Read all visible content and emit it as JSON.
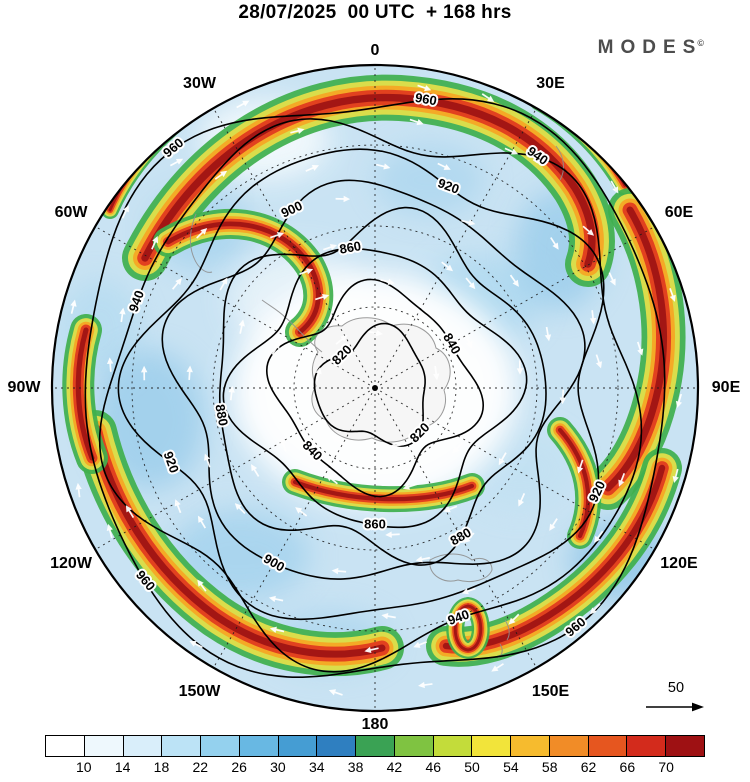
{
  "header": {
    "title": "28/07/2025  00 UTC  + 168 hrs",
    "logo": "MODES",
    "logo_mark": "©"
  },
  "chart_data": {
    "type": "heatmap",
    "title": "28/07/2025 00 UTC + 168 hrs",
    "description_visible": "polar circular weather chart with shaded speed field, height contours, white flow arrows",
    "colorbar": {
      "ticks": [
        "10",
        "14",
        "18",
        "22",
        "26",
        "30",
        "34",
        "38",
        "42",
        "46",
        "50",
        "54",
        "58",
        "62",
        "66",
        "70"
      ],
      "colors": [
        "#ffffff",
        "#eef8fd",
        "#d9eefa",
        "#bce3f6",
        "#94d1ee",
        "#68b8e3",
        "#459dd3",
        "#2f7fc0",
        "#3aa254",
        "#7fc341",
        "#c3dc3a",
        "#f2e43a",
        "#f6bb2e",
        "#f18c27",
        "#e6561f",
        "#d32b1c",
        "#9e1113"
      ]
    },
    "contour_levels": [
      "820",
      "840",
      "860",
      "880",
      "900",
      "920",
      "940",
      "960"
    ],
    "longitude_labels": [
      {
        "label": "0",
        "angle": 0
      },
      {
        "label": "30E",
        "angle": 30
      },
      {
        "label": "60E",
        "angle": 60
      },
      {
        "label": "90E",
        "angle": 90
      },
      {
        "label": "120E",
        "angle": 120
      },
      {
        "label": "150E",
        "angle": 150
      },
      {
        "label": "180",
        "angle": 180
      },
      {
        "label": "150W",
        "angle": 210
      },
      {
        "label": "120W",
        "angle": 240
      },
      {
        "label": "90W",
        "angle": 270
      },
      {
        "label": "60W",
        "angle": 300
      },
      {
        "label": "30W",
        "angle": 330
      }
    ],
    "reference_vector": {
      "value": "50"
    }
  }
}
